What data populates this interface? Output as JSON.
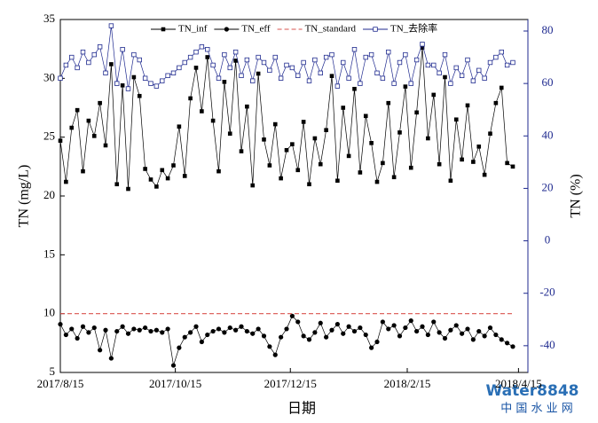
{
  "chart_data": {
    "type": "line",
    "xlabel": "日期",
    "ylabel": "TN (mg/L)",
    "y2label": "TN (%)",
    "x": [
      "2017-08-15",
      "2017-08-18",
      "2017-08-21",
      "2017-08-24",
      "2017-08-27",
      "2017-08-30",
      "2017-09-02",
      "2017-09-05",
      "2017-09-08",
      "2017-09-11",
      "2017-09-14",
      "2017-09-17",
      "2017-09-20",
      "2017-09-23",
      "2017-09-26",
      "2017-09-29",
      "2017-10-02",
      "2017-10-05",
      "2017-10-08",
      "2017-10-11",
      "2017-10-14",
      "2017-10-17",
      "2017-10-20",
      "2017-10-23",
      "2017-10-26",
      "2017-10-29",
      "2017-11-01",
      "2017-11-04",
      "2017-11-07",
      "2017-11-10",
      "2017-11-13",
      "2017-11-16",
      "2017-11-19",
      "2017-11-22",
      "2017-11-25",
      "2017-11-28",
      "2017-12-01",
      "2017-12-04",
      "2017-12-07",
      "2017-12-10",
      "2017-12-13",
      "2017-12-16",
      "2017-12-19",
      "2017-12-22",
      "2017-12-25",
      "2017-12-28",
      "2017-12-31",
      "2018-01-03",
      "2018-01-06",
      "2018-01-09",
      "2018-01-12",
      "2018-01-15",
      "2018-01-18",
      "2018-01-21",
      "2018-01-24",
      "2018-01-27",
      "2018-01-30",
      "2018-02-02",
      "2018-02-05",
      "2018-02-08",
      "2018-02-11",
      "2018-02-14",
      "2018-02-17",
      "2018-02-20",
      "2018-02-23",
      "2018-02-26",
      "2018-03-01",
      "2018-03-04",
      "2018-03-07",
      "2018-03-10",
      "2018-03-13",
      "2018-03-16",
      "2018-03-19",
      "2018-03-22",
      "2018-03-25",
      "2018-03-28",
      "2018-03-31",
      "2018-04-03",
      "2018-04-06",
      "2018-04-09",
      "2018-04-12"
    ],
    "series": [
      {
        "name": "TN_inf",
        "color": "#000000",
        "marker": "square",
        "values": [
          24.7,
          21.2,
          25.8,
          27.3,
          22.1,
          26.4,
          25.1,
          27.9,
          24.3,
          31.2,
          21.0,
          29.4,
          20.6,
          30.1,
          28.5,
          22.3,
          21.4,
          20.8,
          22.2,
          21.5,
          22.6,
          25.9,
          21.7,
          28.3,
          30.9,
          27.2,
          31.8,
          26.4,
          22.1,
          29.7,
          25.3,
          31.5,
          23.8,
          27.6,
          20.9,
          30.4,
          24.8,
          22.6,
          26.1,
          21.5,
          23.9,
          24.4,
          22.2,
          26.3,
          21.0,
          24.9,
          22.7,
          25.6,
          30.2,
          21.3,
          27.5,
          23.4,
          29.1,
          22.0,
          26.8,
          24.5,
          21.2,
          22.8,
          27.9,
          21.6,
          25.4,
          29.3,
          22.4,
          27.1,
          32.6,
          24.9,
          28.6,
          22.7,
          30.1,
          21.3,
          26.5,
          23.1,
          27.7,
          22.9,
          24.2,
          21.8,
          25.3,
          27.9,
          29.2,
          22.8,
          22.5
        ]
      },
      {
        "name": "TN_eff",
        "color": "#000000",
        "marker": "circle",
        "values": [
          9.1,
          8.2,
          8.7,
          7.9,
          8.9,
          8.4,
          8.8,
          6.9,
          8.6,
          6.2,
          8.5,
          8.9,
          8.3,
          8.7,
          8.6,
          8.8,
          8.5,
          8.6,
          8.4,
          8.7,
          5.6,
          7.1,
          8.0,
          8.4,
          8.9,
          7.6,
          8.2,
          8.5,
          8.7,
          8.4,
          8.8,
          8.6,
          8.9,
          8.5,
          8.3,
          8.7,
          8.1,
          7.2,
          6.5,
          8.0,
          8.7,
          9.8,
          9.3,
          8.1,
          7.8,
          8.4,
          9.2,
          8.0,
          8.6,
          9.1,
          8.3,
          8.9,
          8.5,
          8.8,
          8.2,
          7.1,
          7.6,
          9.3,
          8.7,
          9.0,
          8.1,
          8.8,
          9.4,
          8.5,
          8.9,
          8.2,
          9.3,
          8.4,
          7.9,
          8.6,
          9.0,
          8.3,
          8.7,
          7.8,
          8.5,
          8.1,
          8.8,
          8.2,
          7.8,
          7.5,
          7.2
        ]
      },
      {
        "name": "TN_standard",
        "color": "#d9534f",
        "dash": true,
        "values": [
          10,
          10,
          10,
          10,
          10,
          10,
          10,
          10,
          10,
          10,
          10,
          10,
          10,
          10,
          10,
          10,
          10,
          10,
          10,
          10,
          10,
          10,
          10,
          10,
          10,
          10,
          10,
          10,
          10,
          10,
          10,
          10,
          10,
          10,
          10,
          10,
          10,
          10,
          10,
          10,
          10,
          10,
          10,
          10,
          10,
          10,
          10,
          10,
          10,
          10,
          10,
          10,
          10,
          10,
          10,
          10,
          10,
          10,
          10,
          10,
          10,
          10,
          10,
          10,
          10,
          10,
          10,
          10,
          10,
          10,
          10,
          10,
          10,
          10,
          10,
          10,
          10,
          10,
          10,
          10,
          10
        ]
      },
      {
        "name": "TN_去除率",
        "color": "#1f2a8f",
        "marker": "open-square",
        "axis": "y2",
        "values": [
          62,
          67,
          70,
          66,
          72,
          68,
          71,
          74,
          64,
          82,
          60,
          73,
          58,
          71,
          69,
          62,
          60,
          59,
          61,
          63,
          64,
          66,
          68,
          70,
          72,
          74,
          73,
          67,
          62,
          71,
          66,
          72,
          63,
          69,
          61,
          70,
          68,
          65,
          70,
          62,
          67,
          66,
          63,
          68,
          61,
          69,
          64,
          70,
          71,
          59,
          68,
          62,
          73,
          60,
          70,
          71,
          64,
          62,
          72,
          60,
          68,
          71,
          60,
          69,
          75,
          67,
          67,
          64,
          71,
          60,
          66,
          63,
          69,
          61,
          65,
          62,
          68,
          70,
          72,
          67,
          68
        ]
      }
    ],
    "xlim": [
      "2017-08-15",
      "2018-04-20"
    ],
    "xticks": [
      {
        "value": "2017-08-15",
        "label": "2017/8/15"
      },
      {
        "value": "2017-10-15",
        "label": "2017/10/15"
      },
      {
        "value": "2017-12-15",
        "label": "2017/12/15"
      },
      {
        "value": "2018-02-15",
        "label": "2018/2/15"
      },
      {
        "value": "2018-04-15",
        "label": "2018/4/15"
      }
    ],
    "ylim": [
      5,
      35
    ],
    "yticks": [
      5,
      10,
      15,
      20,
      25,
      30,
      35
    ],
    "y2lim": [
      -50.2,
      84.4
    ],
    "y2ticks": [
      -40,
      -20,
      0,
      20,
      40,
      60,
      80
    ],
    "y2color": "#1f2a8f",
    "legend": "top",
    "watermark": "Water8848",
    "watermark2": "中 国 水 业 网"
  }
}
